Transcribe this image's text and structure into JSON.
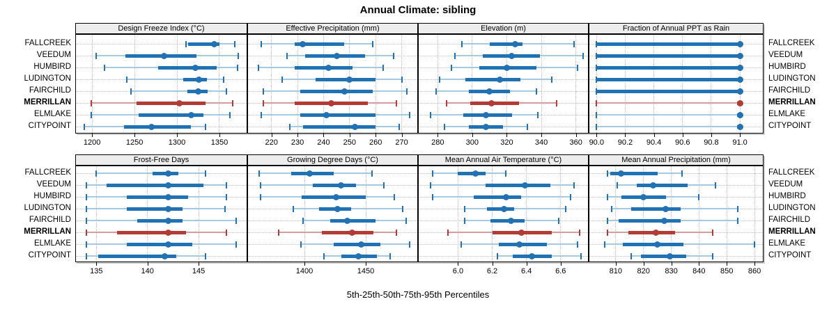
{
  "title": "Annual Climate: sibling",
  "xlabel": "5th-25th-50th-75th-95th Percentiles",
  "sites": [
    "FALLCREEK",
    "VEEDUM",
    "HUMBIRD",
    "LUDINGTON",
    "FAIRCHILD",
    "MERRILLAN",
    "ELMLAKE",
    "CITYPOINT"
  ],
  "highlight_site": "MERRILLAN",
  "colors": {
    "blue": "#2171B5",
    "blue_light": "#A5C9E1",
    "red": "#B23B35",
    "red_light": "#D49C9A",
    "strip_bg": "#EDEDED",
    "panel_border": "#000000",
    "grid": "#BFBFBF",
    "shadow": "#CCCCCC"
  },
  "chart_data": {
    "type": "scatter",
    "subtype": "five-number-percentile-intervals",
    "percentiles": [
      5,
      25,
      50,
      75,
      95
    ],
    "legend_note": "thin line = 5th-95th, thick bar = 25th-75th, dot = median",
    "grid": "dotted",
    "sites": [
      "FALLCREEK",
      "VEEDUM",
      "HUMBIRD",
      "LUDINGTON",
      "FAIRCHILD",
      "MERRILLAN",
      "ELMLAKE",
      "CITYPOINT"
    ],
    "panels": [
      {
        "title": "Design Freeze Index (°C)",
        "range": [
          1181,
          1382
        ],
        "tick_values": [
          1200,
          1250,
          1300,
          1350
        ],
        "tick_labels": [
          "1200",
          "1250",
          "1300",
          "1350"
        ],
        "values": [
          [
            1311,
            1313,
            1344,
            1350,
            1368
          ],
          [
            1205,
            1239,
            1285,
            1323,
            1372
          ],
          [
            1215,
            1278,
            1322,
            1347,
            1371
          ],
          [
            1241,
            1307,
            1326,
            1335,
            1355
          ],
          [
            1246,
            1312,
            1325,
            1336,
            1358
          ],
          [
            1199,
            1252,
            1303,
            1334,
            1366
          ],
          [
            1199,
            1255,
            1317,
            1331,
            1362
          ],
          [
            1191,
            1238,
            1270,
            1316,
            1334
          ]
        ]
      },
      {
        "title": "Effective Precipitation (mm)",
        "range": [
          211,
          276
        ],
        "tick_values": [
          220,
          230,
          240,
          250,
          260,
          270
        ],
        "tick_labels": [
          "220",
          "230",
          "240",
          "250",
          "260",
          "270"
        ],
        "values": [
          [
            216,
            229,
            232,
            248,
            259
          ],
          [
            226,
            233,
            245,
            256,
            267
          ],
          [
            215,
            229,
            242,
            251,
            263
          ],
          [
            224,
            237,
            250,
            260,
            270
          ],
          [
            217,
            231,
            248,
            259,
            272
          ],
          [
            217,
            229,
            243,
            257,
            268
          ],
          [
            216,
            231,
            241,
            260,
            273
          ],
          [
            227,
            232,
            252,
            260,
            269
          ]
        ]
      },
      {
        "title": "Elevation (m)",
        "range": [
          269,
          367
        ],
        "tick_values": [
          280,
          300,
          320,
          340,
          360
        ],
        "tick_labels": [
          "280",
          "300",
          "320",
          "340",
          "360"
        ],
        "values": [
          [
            294,
            310,
            325,
            329,
            359
          ],
          [
            290,
            306,
            323,
            339,
            364
          ],
          [
            288,
            304,
            320,
            337,
            361
          ],
          [
            281,
            296,
            316,
            328,
            346
          ],
          [
            279,
            298,
            310,
            322,
            337
          ],
          [
            285,
            299,
            311,
            327,
            349
          ],
          [
            276,
            295,
            308,
            323,
            338
          ],
          [
            284,
            298,
            308,
            318,
            332
          ]
        ]
      },
      {
        "title": "Fraction of Annual PPT as Rain",
        "range": [
          89.95,
          91.16
        ],
        "tick_values": [
          90.0,
          90.2,
          90.4,
          90.6,
          90.8,
          91.0
        ],
        "tick_labels": [
          "90.0",
          "90.2",
          "90.4",
          "90.6",
          "90.8",
          "91.0"
        ],
        "values": [
          [
            90.0,
            90.0,
            91.0,
            91.0,
            91.0
          ],
          [
            90.0,
            90.0,
            91.0,
            91.0,
            91.0
          ],
          [
            90.0,
            90.0,
            91.0,
            91.0,
            91.0
          ],
          [
            90.0,
            90.0,
            91.0,
            91.0,
            91.0
          ],
          [
            90.0,
            90.0,
            91.0,
            91.0,
            91.0
          ],
          [
            90.0,
            90.98,
            91.0,
            91.0,
            91.0
          ],
          [
            90.0,
            90.98,
            91.0,
            91.0,
            91.0
          ],
          [
            90.0,
            90.98,
            91.0,
            91.0,
            91.0
          ]
        ]
      },
      {
        "title": "Frost-Free Days",
        "range": [
          133,
          149.7
        ],
        "tick_values": [
          135,
          140,
          145
        ],
        "tick_labels": [
          "135",
          "140",
          "145"
        ],
        "values": [
          [
            135,
            140.5,
            142,
            143,
            145.7
          ],
          [
            134,
            136,
            142,
            145.5,
            147.7
          ],
          [
            134,
            138,
            142,
            144,
            147.7
          ],
          [
            134,
            138,
            142,
            143.4,
            147.6
          ],
          [
            134,
            139,
            142,
            143.4,
            148.7
          ],
          [
            134,
            137,
            142,
            143.8,
            147.7
          ],
          [
            134,
            138,
            142,
            144.4,
            148.7
          ],
          [
            134,
            135.2,
            141.7,
            142.8,
            145.7
          ]
        ]
      },
      {
        "title": "Growing Degree Days (°C)",
        "range": [
          1354,
          1492
        ],
        "tick_values": [
          1400,
          1450
        ],
        "tick_labels": [
          "1400",
          "1450"
        ],
        "values": [
          [
            1363,
            1389,
            1404,
            1424,
            1455
          ],
          [
            1364,
            1407,
            1430,
            1442,
            1465
          ],
          [
            1364,
            1398,
            1426,
            1450,
            1473
          ],
          [
            1391,
            1412,
            1427,
            1438,
            1480
          ],
          [
            1399,
            1421,
            1435,
            1458,
            1483
          ],
          [
            1379,
            1414,
            1439,
            1456,
            1475
          ],
          [
            1397,
            1424,
            1446,
            1462,
            1486
          ],
          [
            1416,
            1430,
            1444,
            1459,
            1470
          ]
        ]
      },
      {
        "title": "Mean Annual Air Temperature (°C)",
        "range": [
          5.77,
          6.76
        ],
        "tick_values": [
          6.0,
          6.2,
          6.4,
          6.6
        ],
        "tick_labels": [
          "6.0",
          "6.2",
          "6.4",
          "6.6"
        ],
        "values": [
          [
            5.85,
            6.0,
            6.1,
            6.16,
            6.28
          ],
          [
            5.84,
            6.16,
            6.39,
            6.54,
            6.68
          ],
          [
            5.85,
            6.09,
            6.28,
            6.37,
            6.66
          ],
          [
            6.04,
            6.17,
            6.27,
            6.33,
            6.63
          ],
          [
            6.04,
            6.19,
            6.31,
            6.39,
            6.59
          ],
          [
            5.94,
            6.2,
            6.37,
            6.55,
            6.71
          ],
          [
            6.02,
            6.24,
            6.36,
            6.52,
            6.7
          ],
          [
            6.23,
            6.32,
            6.43,
            6.55,
            6.72
          ]
        ]
      },
      {
        "title": "Mean Annual Precipitation (mm)",
        "range": [
          800.5,
          863
        ],
        "tick_values": [
          810,
          820,
          830,
          840,
          850,
          860
        ],
        "tick_labels": [
          "810",
          "820",
          "830",
          "840",
          "850",
          "860"
        ],
        "values": [
          [
            807,
            808,
            812,
            825,
            834
          ],
          [
            810.5,
            817.5,
            823.5,
            836,
            846
          ],
          [
            807,
            812,
            820,
            828,
            840
          ],
          [
            808.5,
            815.5,
            828,
            833.5,
            854
          ],
          [
            807,
            811,
            827.5,
            833.5,
            854
          ],
          [
            807,
            814.5,
            824.5,
            831.5,
            845
          ],
          [
            806,
            812.5,
            825,
            834.5,
            860
          ],
          [
            815.5,
            819,
            829.5,
            835.5,
            845
          ]
        ]
      }
    ]
  }
}
